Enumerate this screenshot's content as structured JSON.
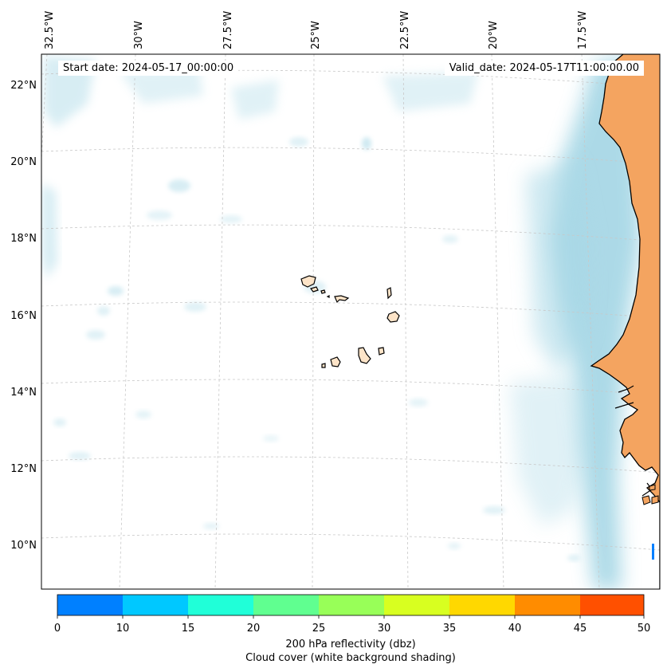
{
  "map": {
    "start_date": "Start date: 2024-05-17_00:00:00",
    "valid_date": "Valid_date: 2024-05-17T11:00:00.00",
    "lon_labels": [
      "32.5°W",
      "30°W",
      "27.5°W",
      "25°W",
      "22.5°W",
      "20°W",
      "17.5°W"
    ],
    "lat_labels": [
      "22°N",
      "20°N",
      "18°N",
      "16°N",
      "14°N",
      "12°N",
      "10°N"
    ]
  },
  "colorbar": {
    "ticks": [
      "0",
      "10",
      "15",
      "20",
      "25",
      "30",
      "35",
      "40",
      "45",
      "50"
    ],
    "colors": [
      "#0080ff",
      "#00c8ff",
      "#20ffd8",
      "#60ff90",
      "#98ff58",
      "#d8ff20",
      "#ffd800",
      "#ff8c00",
      "#ff5000"
    ],
    "label_line1": "200 hPa reflectivity (dbz)",
    "label_line2": "Cloud cover (white background shading)"
  },
  "colors": {
    "land": "#f4a460",
    "islands": "#fde4c8",
    "cloud": "#a8d8e6"
  }
}
